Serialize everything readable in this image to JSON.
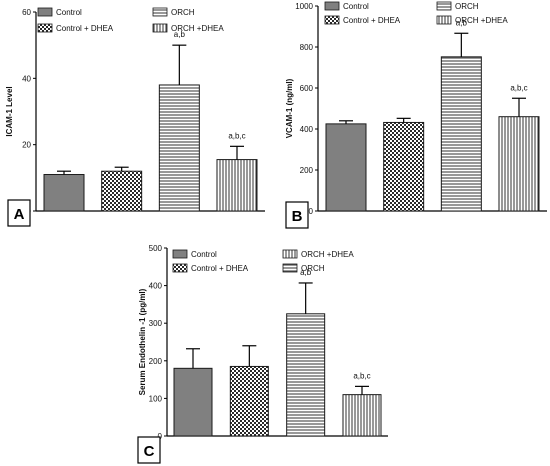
{
  "chart_data": [
    {
      "type": "bar",
      "panel_label": "A",
      "ylabel": "ICAM-1 Level",
      "ylim": [
        0,
        60
      ],
      "yticks": [
        "0",
        "20",
        "40",
        "60"
      ],
      "categories": [
        "Control",
        "Control + DHEA",
        "ORCH",
        "ORCH +DHEA"
      ],
      "values": [
        11,
        12,
        38,
        15.5
      ],
      "errors": [
        1,
        1.2,
        12,
        4
      ],
      "annotations": [
        "",
        "",
        "a,b",
        "a,b,c"
      ],
      "legend": {
        "items": [
          "Control",
          "ORCH",
          "Control + DHEA",
          "ORCH +DHEA"
        ],
        "patterns": [
          "solid",
          "hlines",
          "checker",
          "vlines"
        ]
      }
    },
    {
      "type": "bar",
      "panel_label": "B",
      "ylabel": "VCAM-1 (ng/ml)",
      "ylim": [
        0,
        1000
      ],
      "yticks": [
        "0",
        "200",
        "400",
        "600",
        "800",
        "1000"
      ],
      "categories": [
        "Control",
        "Control + DHEA",
        "ORCH",
        "ORCH +DHEA"
      ],
      "values": [
        425,
        432,
        752,
        460
      ],
      "errors": [
        15,
        20,
        115,
        90
      ],
      "annotations": [
        "",
        "",
        "a,b",
        "a,b,c"
      ],
      "legend": {
        "items": [
          "Control",
          "ORCH",
          "Control + DHEA",
          "ORCH +DHEA"
        ],
        "patterns": [
          "solid",
          "hlines",
          "checker",
          "vlines"
        ]
      }
    },
    {
      "type": "bar",
      "panel_label": "C",
      "ylabel": "Serum Endothelin -1 (pg/ml)",
      "ylim": [
        0,
        500
      ],
      "yticks": [
        "0",
        "100",
        "200",
        "300",
        "400",
        "500"
      ],
      "categories": [
        "Control",
        "Control + DHEA",
        "ORCH",
        "ORCH +DHEA"
      ],
      "values": [
        180,
        185,
        325,
        110
      ],
      "errors": [
        52,
        55,
        82,
        22
      ],
      "annotations": [
        "",
        "",
        "a,b",
        "a,b,c"
      ],
      "legend": {
        "items": [
          "Control",
          "ORCH +DHEA",
          "Control + DHEA",
          "ORCH"
        ],
        "patterns": [
          "solid",
          "vlines",
          "checker",
          "hlines"
        ]
      }
    }
  ],
  "colors": {
    "solid_fill": "#808080",
    "bar_stroke": "#1a1a1a",
    "axis": "#000000",
    "pattern_line": "#333333",
    "checker_dark": "#2a2a2a"
  }
}
